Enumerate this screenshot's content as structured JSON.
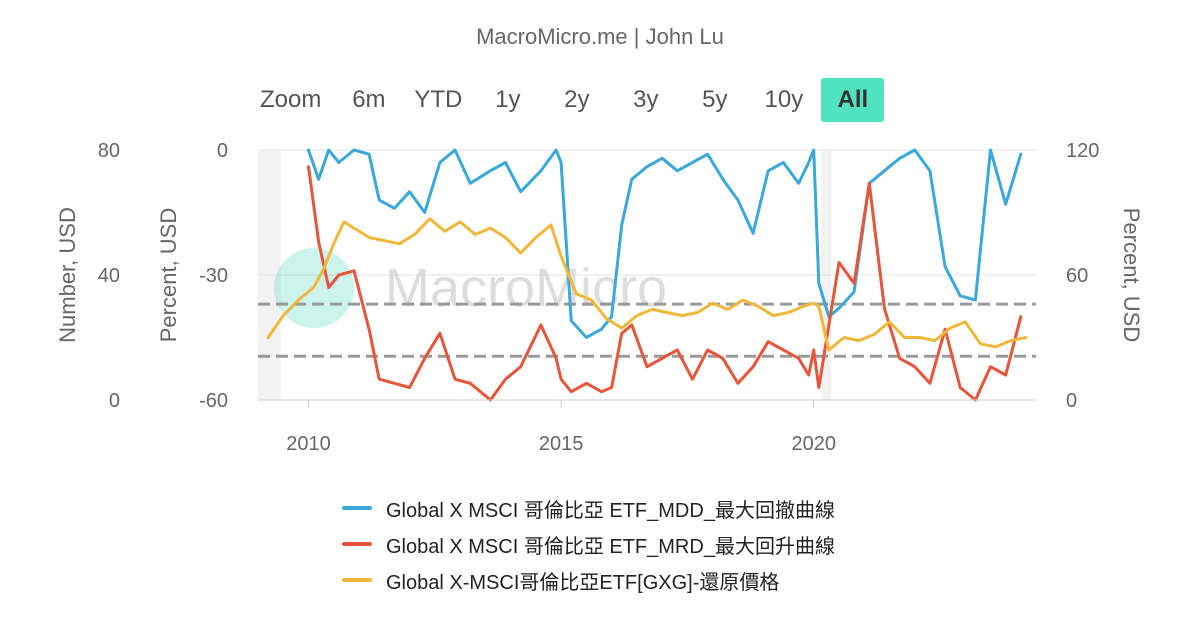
{
  "header": {
    "subtitle": "MacroMicro.me | John Lu",
    "zoom_label": "Zoom",
    "ranges": [
      "6m",
      "YTD",
      "1y",
      "2y",
      "3y",
      "5y",
      "10y",
      "All"
    ],
    "active_range": "All"
  },
  "watermark": "MacroMicro",
  "chart_data": {
    "type": "line",
    "x_axis": {
      "ticks": [
        "2010",
        "2015",
        "2020"
      ],
      "range": [
        2009.0,
        2024.4
      ]
    },
    "y_axes": [
      {
        "id": "number",
        "label": "Number, USD",
        "ticks": [
          "0",
          "40",
          "80"
        ],
        "range": [
          0,
          80
        ]
      },
      {
        "id": "percent",
        "label": "Percent, USD",
        "ticks": [
          "-60",
          "-30",
          "0"
        ],
        "range": [
          -60,
          0
        ]
      },
      {
        "id": "right",
        "label": "Percent, USD",
        "ticks": [
          "0",
          "60",
          "120"
        ],
        "range": [
          0,
          120
        ]
      }
    ],
    "reference_lines_percent": [
      -37,
      -49.5
    ],
    "shaded_periods": [
      [
        2009.0,
        2009.45
      ],
      [
        2020.15,
        2020.35
      ]
    ],
    "legend_position": "bottom",
    "series": [
      {
        "name": "Global X MSCI 哥倫比亞 ETF_MDD_最大回撤曲線",
        "axis": "percent",
        "color": "#3aa8d8",
        "x": [
          2010.0,
          2010.2,
          2010.4,
          2010.6,
          2010.9,
          2011.2,
          2011.4,
          2011.7,
          2012.0,
          2012.3,
          2012.6,
          2012.9,
          2013.2,
          2013.6,
          2013.9,
          2014.2,
          2014.6,
          2014.9,
          2015.0,
          2015.2,
          2015.5,
          2015.8,
          2016.0,
          2016.2,
          2016.4,
          2016.7,
          2017.0,
          2017.3,
          2017.6,
          2017.9,
          2018.2,
          2018.5,
          2018.8,
          2019.1,
          2019.4,
          2019.7,
          2019.9,
          2020.0,
          2020.1,
          2020.3,
          2020.5,
          2020.8,
          2021.1,
          2021.4,
          2021.7,
          2022.0,
          2022.3,
          2022.6,
          2022.9,
          2023.2,
          2023.5,
          2023.8,
          2024.1
        ],
        "values": [
          0,
          -7,
          0,
          -3,
          0,
          -1,
          -12,
          -14,
          -10,
          -15,
          -3,
          0,
          -8,
          -5,
          -3,
          -10,
          -5,
          0,
          -3,
          -41,
          -45,
          -43,
          -40,
          -18,
          -7,
          -4,
          -2,
          -5,
          -3,
          -1,
          -7,
          -12,
          -20,
          -5,
          -3,
          -8,
          -3,
          0,
          -32,
          -40,
          -38,
          -34,
          -8,
          -5,
          -2,
          0,
          -5,
          -28,
          -35,
          -36,
          0,
          -13,
          -1
        ]
      },
      {
        "name": "Global X MSCI 哥倫比亞 ETF_MRD_最大回升曲線",
        "axis": "percent",
        "color": "#e6563a",
        "x": [
          2010.0,
          2010.2,
          2010.4,
          2010.6,
          2010.9,
          2011.2,
          2011.4,
          2011.7,
          2012.0,
          2012.3,
          2012.6,
          2012.9,
          2013.2,
          2013.6,
          2013.9,
          2014.2,
          2014.6,
          2014.9,
          2015.0,
          2015.2,
          2015.5,
          2015.8,
          2016.0,
          2016.2,
          2016.4,
          2016.7,
          2017.0,
          2017.3,
          2017.6,
          2017.9,
          2018.2,
          2018.5,
          2018.8,
          2019.1,
          2019.4,
          2019.7,
          2019.9,
          2020.0,
          2020.1,
          2020.3,
          2020.5,
          2020.8,
          2021.1,
          2021.4,
          2021.7,
          2022.0,
          2022.3,
          2022.6,
          2022.9,
          2023.2,
          2023.5,
          2023.8,
          2024.1
        ],
        "values": [
          -4,
          -22,
          -33,
          -30,
          -29,
          -43,
          -55,
          -56,
          -57,
          -50,
          -44,
          -55,
          -56,
          -60,
          -55,
          -52,
          -42,
          -50,
          -55,
          -58,
          -56,
          -58,
          -57,
          -44,
          -42,
          -52,
          -50,
          -48,
          -55,
          -48,
          -50,
          -56,
          -52,
          -46,
          -48,
          -50,
          -54,
          -48,
          -57,
          -42,
          -27,
          -32,
          -8,
          -38,
          -50,
          -52,
          -56,
          -43,
          -57,
          -60,
          -52,
          -54,
          -40
        ]
      },
      {
        "name": "Global X-MSCI哥倫比亞ETF[GXG]-還原價格",
        "axis": "number",
        "color": "#f0b83a",
        "x": [
          2009.2,
          2009.5,
          2009.8,
          2010.1,
          2010.3,
          2010.5,
          2010.7,
          2010.9,
          2011.2,
          2011.5,
          2011.8,
          2012.1,
          2012.4,
          2012.7,
          2013.0,
          2013.3,
          2013.6,
          2013.9,
          2014.2,
          2014.5,
          2014.8,
          2015.0,
          2015.3,
          2015.6,
          2015.9,
          2016.2,
          2016.5,
          2016.8,
          2017.1,
          2017.4,
          2017.7,
          2018.0,
          2018.3,
          2018.6,
          2018.9,
          2019.2,
          2019.5,
          2019.8,
          2020.0,
          2020.1,
          2020.3,
          2020.6,
          2020.9,
          2021.2,
          2021.5,
          2021.8,
          2022.1,
          2022.4,
          2022.7,
          2023.0,
          2023.3,
          2023.6,
          2023.9,
          2024.2
        ],
        "values": [
          20,
          27,
          32,
          36,
          42,
          50,
          57,
          55,
          52,
          51,
          50,
          53,
          58,
          54,
          57,
          53,
          55,
          52,
          47,
          52,
          56,
          46,
          34,
          32,
          26,
          23,
          27,
          29,
          28,
          27,
          28,
          31,
          29,
          32,
          30,
          27,
          28,
          30,
          31,
          30,
          16,
          20,
          19,
          21,
          25,
          20,
          20,
          19,
          23,
          25,
          18,
          17,
          19,
          20
        ]
      }
    ]
  }
}
